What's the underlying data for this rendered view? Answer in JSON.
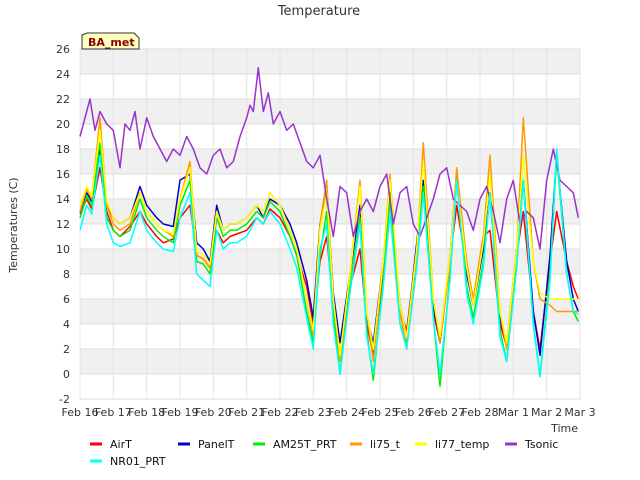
{
  "chart_data": {
    "type": "line",
    "title": "Temperature",
    "xlabel": "Time",
    "ylabel": "Temperatures (C)",
    "badge": "BA_met",
    "ylim": [
      -2,
      26
    ],
    "yticks": [
      "-2",
      "0",
      "2",
      "4",
      "6",
      "8",
      "10",
      "12",
      "14",
      "16",
      "18",
      "20",
      "22",
      "24",
      "26"
    ],
    "xlim": [
      0,
      15
    ],
    "xticks": [
      "Feb 16",
      "Feb 17",
      "Feb 18",
      "Feb 19",
      "Feb 20",
      "Feb 21",
      "Feb 22",
      "Feb 23",
      "Feb 24",
      "Feb 25",
      "Feb 26",
      "Feb 27",
      "Feb 28",
      "Mar 1",
      "Mar 2",
      "Mar 3"
    ],
    "grid": true,
    "legend_position": "bottom",
    "series": [
      {
        "name": "AirT",
        "color": "#ff0000",
        "x": [
          0,
          0.2,
          0.35,
          0.6,
          0.8,
          1,
          1.2,
          1.5,
          1.8,
          2,
          2.3,
          2.5,
          2.8,
          3,
          3.3,
          3.5,
          3.7,
          3.9,
          4.1,
          4.3,
          4.5,
          4.7,
          5,
          5.3,
          5.5,
          5.7,
          6,
          6.3,
          6.5,
          6.8,
          7,
          7.2,
          7.4,
          7.6,
          7.8,
          8.1,
          8.4,
          8.6,
          8.8,
          9.1,
          9.3,
          9.6,
          9.8,
          10.1,
          10.3,
          10.6,
          10.8,
          11.1,
          11.3,
          11.6,
          11.8,
          12.1,
          12.3,
          12.6,
          12.8,
          13.1,
          13.3,
          13.6,
          13.8,
          14.1,
          14.3,
          14.6,
          14.8,
          14.95
        ],
        "y": [
          12.8,
          14,
          13.2,
          16.5,
          13,
          11.5,
          11,
          11.8,
          13,
          12,
          11,
          10.5,
          10.8,
          12.5,
          13.5,
          9.5,
          9.2,
          8.5,
          11.5,
          10.5,
          11,
          11.2,
          11.5,
          12.5,
          12,
          13.2,
          12.5,
          11,
          9.5,
          7,
          4,
          9,
          11,
          5.5,
          1.5,
          7,
          10,
          4,
          1.5,
          8,
          13,
          5,
          3.5,
          10,
          15,
          5,
          2.5,
          9,
          13.5,
          8.5,
          6,
          11,
          11.5,
          4,
          2.2,
          9.5,
          13,
          5,
          2,
          9,
          13,
          9,
          7,
          6
        ]
      },
      {
        "name": "PanelT",
        "color": "#0000cc",
        "x": [
          0,
          0.2,
          0.35,
          0.6,
          0.8,
          1,
          1.2,
          1.5,
          1.8,
          2,
          2.3,
          2.5,
          2.8,
          3,
          3.3,
          3.5,
          3.7,
          3.9,
          4.1,
          4.3,
          4.5,
          4.7,
          5,
          5.3,
          5.5,
          5.7,
          6,
          6.3,
          6.5,
          6.8,
          7,
          7.2,
          7.4,
          7.6,
          7.8,
          8.1,
          8.4,
          8.6,
          8.8,
          9.1,
          9.3,
          9.6,
          9.8,
          10.1,
          10.3,
          10.6,
          10.8,
          11.1,
          11.3,
          11.6,
          11.8,
          12.1,
          12.3,
          12.6,
          12.8,
          13.1,
          13.3,
          13.6,
          13.8,
          14.1,
          14.3,
          14.6,
          14.8,
          14.95
        ],
        "y": [
          13,
          14.5,
          13.8,
          18,
          13.5,
          12.5,
          12,
          12.5,
          15,
          13.5,
          12.5,
          12,
          11.8,
          15.5,
          16,
          10.5,
          10,
          9,
          13.5,
          11.5,
          12,
          12,
          12.5,
          13.5,
          12.5,
          14,
          13.5,
          12,
          10.5,
          7.5,
          4.5,
          12,
          14.5,
          6.5,
          2.5,
          8,
          13.5,
          4.5,
          2.5,
          9,
          14.5,
          5.5,
          3,
          10.5,
          15.5,
          5.5,
          2.5,
          9.5,
          16,
          8,
          5.5,
          10,
          14.5,
          4.5,
          2.5,
          10,
          15.5,
          5,
          1.5,
          9.5,
          17.5,
          9,
          6,
          5
        ]
      },
      {
        "name": "AM25T_PRT",
        "color": "#00ee00",
        "x": [
          0,
          0.2,
          0.35,
          0.6,
          0.8,
          1,
          1.2,
          1.5,
          1.8,
          2,
          2.3,
          2.5,
          2.8,
          3,
          3.3,
          3.5,
          3.7,
          3.9,
          4.1,
          4.3,
          4.5,
          4.7,
          5,
          5.3,
          5.5,
          5.7,
          6,
          6.3,
          6.5,
          6.8,
          7,
          7.2,
          7.4,
          7.6,
          7.8,
          8.1,
          8.4,
          8.6,
          8.8,
          9.1,
          9.3,
          9.6,
          9.8,
          10.1,
          10.3,
          10.6,
          10.8,
          11.1,
          11.3,
          11.6,
          11.8,
          12.1,
          12.3,
          12.6,
          12.8,
          13.1,
          13.3,
          13.6,
          13.8,
          14.1,
          14.3,
          14.6,
          14.8,
          14.95
        ],
        "y": [
          12.5,
          14.2,
          13.5,
          18.5,
          12.5,
          11.5,
          11,
          11.5,
          14,
          12.5,
          11.5,
          11,
          10.5,
          13.5,
          15.5,
          9,
          8.8,
          8,
          12.5,
          11,
          11.5,
          11.5,
          12,
          13,
          12.5,
          13.8,
          13,
          11,
          9.5,
          5,
          2.5,
          9.5,
          13,
          5,
          0,
          7,
          12.5,
          3.5,
          -0.5,
          7.5,
          14,
          4,
          2.5,
          9,
          15,
          4.5,
          -1,
          8,
          16,
          7,
          4.5,
          9,
          14.5,
          3.5,
          1,
          9,
          15.5,
          4,
          -0.2,
          8,
          17.5,
          8,
          5,
          4.2
        ]
      },
      {
        "name": "li75_t",
        "color": "#ff9900",
        "x": [
          0,
          0.2,
          0.35,
          0.6,
          0.8,
          1,
          1.2,
          1.5,
          1.8,
          2,
          2.3,
          2.5,
          2.8,
          3,
          3.3,
          3.5,
          3.7,
          3.9,
          4.1,
          4.3,
          4.5,
          4.7,
          5,
          5.3,
          5.5,
          5.7,
          6,
          6.3,
          6.5,
          6.8,
          7,
          7.2,
          7.4,
          7.6,
          7.8,
          8.1,
          8.4,
          8.6,
          8.8,
          9.1,
          9.3,
          9.6,
          9.8,
          10.1,
          10.3,
          10.6,
          10.8,
          11.1,
          11.3,
          11.6,
          11.8,
          12.1,
          12.3,
          12.6,
          12.8,
          13.1,
          13.3,
          13.6,
          13.8,
          14.1,
          14.3,
          14.6,
          14.8,
          14.95
        ],
        "y": [
          13,
          14.8,
          14,
          20.5,
          13.5,
          12,
          11.5,
          12,
          14.5,
          13,
          12,
          11.5,
          11,
          14,
          17,
          9.5,
          9.2,
          8.5,
          13,
          11.5,
          12,
          12,
          12.5,
          13.5,
          13,
          14.5,
          13.5,
          11.5,
          10,
          6,
          3,
          12,
          15.5,
          6,
          1,
          8,
          15.5,
          5,
          1,
          9,
          16,
          5,
          2,
          9.5,
          18.5,
          6,
          2.5,
          9,
          16.5,
          9,
          6,
          11,
          17.5,
          5,
          2,
          10,
          20.5,
          9,
          6,
          5.5,
          5,
          5,
          5,
          5
        ]
      },
      {
        "name": "li77_temp",
        "color": "#ffff00",
        "x": [
          0,
          0.2,
          0.35,
          0.6,
          0.8,
          1,
          1.2,
          1.5,
          1.8,
          2,
          2.3,
          2.5,
          2.8,
          3,
          3.3,
          3.5,
          3.7,
          3.9,
          4.1,
          4.3,
          4.5,
          4.7,
          5,
          5.3,
          5.5,
          5.7,
          6,
          6.3,
          6.5,
          6.8,
          7,
          7.2,
          7.4,
          7.6,
          7.8,
          8.1,
          8.4,
          8.6,
          8.8,
          9.1,
          9.3,
          9.6,
          9.8,
          10.1,
          10.3,
          10.6,
          10.8,
          11.1,
          11.3,
          11.6,
          11.8,
          12.1,
          12.3,
          12.6,
          12.8,
          13.1,
          13.3,
          13.6,
          13.8,
          14.1,
          14.3,
          14.6,
          14.8,
          14.95
        ],
        "y": [
          13.5,
          15,
          14.2,
          19.5,
          13.8,
          12.5,
          12,
          12.5,
          14.5,
          13,
          12,
          11.5,
          11.2,
          14,
          16.5,
          9.8,
          9.5,
          8.8,
          13,
          11.5,
          12,
          12,
          12.5,
          13.5,
          13,
          14.5,
          13.5,
          11.5,
          10,
          6,
          3.5,
          11.5,
          14.5,
          6,
          1.5,
          8,
          15,
          5,
          2,
          9,
          15.5,
          5.5,
          3,
          10,
          17,
          6,
          3,
          9.5,
          15.5,
          8.5,
          5.5,
          10.5,
          16,
          5,
          2.5,
          10,
          17.5,
          9,
          6.5,
          6,
          6,
          6,
          6,
          6
        ]
      },
      {
        "name": "Tsonic",
        "color": "#9933cc",
        "x": [
          0,
          0.15,
          0.3,
          0.45,
          0.6,
          0.8,
          1,
          1.2,
          1.35,
          1.5,
          1.65,
          1.8,
          2,
          2.2,
          2.4,
          2.6,
          2.8,
          3,
          3.2,
          3.4,
          3.6,
          3.8,
          4,
          4.2,
          4.4,
          4.6,
          4.8,
          5,
          5.1,
          5.2,
          5.35,
          5.5,
          5.65,
          5.8,
          6,
          6.2,
          6.4,
          6.6,
          6.8,
          7,
          7.2,
          7.4,
          7.6,
          7.8,
          8,
          8.2,
          8.4,
          8.6,
          8.8,
          9,
          9.2,
          9.4,
          9.6,
          9.8,
          10,
          10.2,
          10.4,
          10.6,
          10.8,
          11,
          11.2,
          11.4,
          11.6,
          11.8,
          12,
          12.2,
          12.4,
          12.6,
          12.8,
          13,
          13.2,
          13.4,
          13.6,
          13.8,
          14,
          14.2,
          14.4,
          14.6,
          14.8,
          14.95
        ],
        "y": [
          19,
          20.5,
          22,
          19.5,
          21,
          20,
          19.5,
          16.5,
          20,
          19.5,
          21,
          18,
          20.5,
          19,
          18,
          17,
          18,
          17.5,
          19,
          18,
          16.5,
          16,
          17.5,
          18,
          16.5,
          17,
          19,
          20.5,
          21.5,
          21,
          24.5,
          21,
          22.5,
          20,
          21,
          19.5,
          20,
          18.5,
          17,
          16.5,
          17.5,
          14,
          11,
          15,
          14.5,
          11,
          13,
          14,
          13,
          15,
          16,
          12,
          14.5,
          15,
          12,
          11,
          12.5,
          14,
          16,
          16.5,
          14,
          13.5,
          13,
          11.5,
          14,
          15,
          13,
          10.5,
          14,
          15.5,
          12,
          13,
          12.5,
          10,
          15.5,
          18,
          15.5,
          15,
          14.5,
          12.5
        ]
      },
      {
        "name": "NR01_PRT",
        "color": "#00ffff",
        "x": [
          0,
          0.2,
          0.35,
          0.6,
          0.8,
          1,
          1.2,
          1.5,
          1.8,
          2,
          2.3,
          2.5,
          2.8,
          3,
          3.3,
          3.5,
          3.7,
          3.9,
          4.1,
          4.3,
          4.5,
          4.7,
          5,
          5.3,
          5.5,
          5.7,
          6,
          6.3,
          6.5,
          6.8,
          7,
          7.2,
          7.4,
          7.6,
          7.8,
          8.1,
          8.4,
          8.6,
          8.8,
          9.1,
          9.3,
          9.6,
          9.8,
          10.1,
          10.3,
          10.6,
          10.8,
          11.1,
          11.3,
          11.6,
          11.8,
          12.1,
          12.3,
          12.6,
          12.8,
          13.1,
          13.3,
          13.6,
          13.8,
          14.1,
          14.3,
          14.6,
          14.8,
          14.95
        ],
        "y": [
          11.5,
          13.5,
          12.8,
          17.5,
          12,
          10.5,
          10.2,
          10.5,
          13,
          11.5,
          10.5,
          10,
          9.8,
          12.5,
          14.5,
          8,
          7.5,
          7,
          11.5,
          10,
          10.5,
          10.5,
          11,
          12.5,
          12,
          13,
          12,
          10,
          8.5,
          4.5,
          2,
          10,
          12,
          4,
          0,
          6.5,
          12,
          3,
          0,
          7,
          13,
          4,
          2,
          8.5,
          14.5,
          4.5,
          0,
          7.5,
          15.5,
          6.5,
          4,
          8.5,
          14.5,
          3,
          1,
          8.5,
          15.5,
          4,
          -0.2,
          7.5,
          18,
          8,
          5,
          4.8
        ]
      }
    ]
  }
}
